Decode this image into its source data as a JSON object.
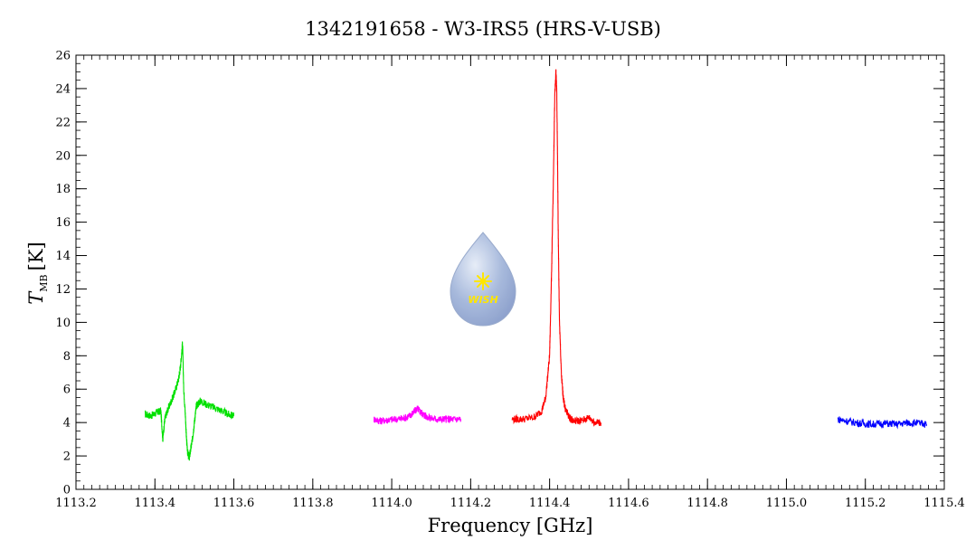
{
  "chart_data": {
    "type": "line",
    "title": "1342191658 - W3-IRS5 (HRS-V-USB)",
    "xlabel": "Frequency [GHz]",
    "ylabel_main": "T",
    "ylabel_sub": "MB",
    "ylabel_unit": "[K]",
    "xlim": [
      1113.2,
      1115.4
    ],
    "ylim": [
      0,
      26
    ],
    "x_ticks": [
      "1113.2",
      "1113.4",
      "1113.6",
      "1113.8",
      "1114.0",
      "1114.2",
      "1114.4",
      "1114.6",
      "1114.8",
      "1115.0",
      "1115.2",
      "1115.4"
    ],
    "y_ticks": [
      "0",
      "2",
      "4",
      "6",
      "8",
      "10",
      "12",
      "14",
      "16",
      "18",
      "20",
      "22",
      "24",
      "26"
    ],
    "grid": false,
    "logo_text": "WISH",
    "series": [
      {
        "color": "#00e000",
        "x": [
          1113.375,
          1113.39,
          1113.405,
          1113.415,
          1113.42,
          1113.425,
          1113.43,
          1113.44,
          1113.45,
          1113.46,
          1113.465,
          1113.47,
          1113.473,
          1113.477,
          1113.48,
          1113.483,
          1113.487,
          1113.49,
          1113.495,
          1113.5,
          1113.505,
          1113.515,
          1113.53,
          1113.55,
          1113.57,
          1113.585,
          1113.6
        ],
        "y": [
          4.5,
          4.4,
          4.6,
          4.7,
          3.0,
          4.2,
          4.6,
          5.2,
          5.8,
          6.6,
          7.4,
          8.8,
          6.0,
          4.5,
          3.0,
          2.2,
          1.9,
          2.3,
          3.0,
          4.0,
          5.0,
          5.3,
          5.1,
          4.9,
          4.7,
          4.5,
          4.4
        ]
      },
      {
        "color": "#ff00ff",
        "x": [
          1113.955,
          1113.97,
          1113.99,
          1114.01,
          1114.03,
          1114.045,
          1114.055,
          1114.065,
          1114.075,
          1114.085,
          1114.1,
          1114.12,
          1114.14,
          1114.16,
          1114.175
        ],
        "y": [
          4.2,
          4.1,
          4.15,
          4.2,
          4.25,
          4.4,
          4.6,
          4.85,
          4.6,
          4.4,
          4.25,
          4.2,
          4.2,
          4.2,
          4.2
        ]
      },
      {
        "color": "#ff0000",
        "x": [
          1114.305,
          1114.33,
          1114.36,
          1114.38,
          1114.39,
          1114.4,
          1114.405,
          1114.41,
          1114.413,
          1114.416,
          1114.418,
          1114.42,
          1114.422,
          1114.425,
          1114.43,
          1114.435,
          1114.44,
          1114.45,
          1114.46,
          1114.48,
          1114.5,
          1114.515,
          1114.53
        ],
        "y": [
          4.2,
          4.2,
          4.3,
          4.7,
          5.5,
          8.0,
          13.0,
          19.0,
          23.5,
          25.0,
          24.0,
          20.0,
          15.0,
          10.0,
          6.8,
          5.4,
          4.8,
          4.3,
          4.1,
          4.1,
          4.3,
          4.0,
          4.0
        ]
      },
      {
        "color": "#0000ff",
        "x": [
          1115.13,
          1115.16,
          1115.19,
          1115.22,
          1115.25,
          1115.28,
          1115.31,
          1115.34,
          1115.355
        ],
        "y": [
          4.2,
          4.05,
          3.95,
          3.9,
          3.95,
          3.9,
          4.0,
          3.95,
          3.9
        ]
      }
    ]
  }
}
